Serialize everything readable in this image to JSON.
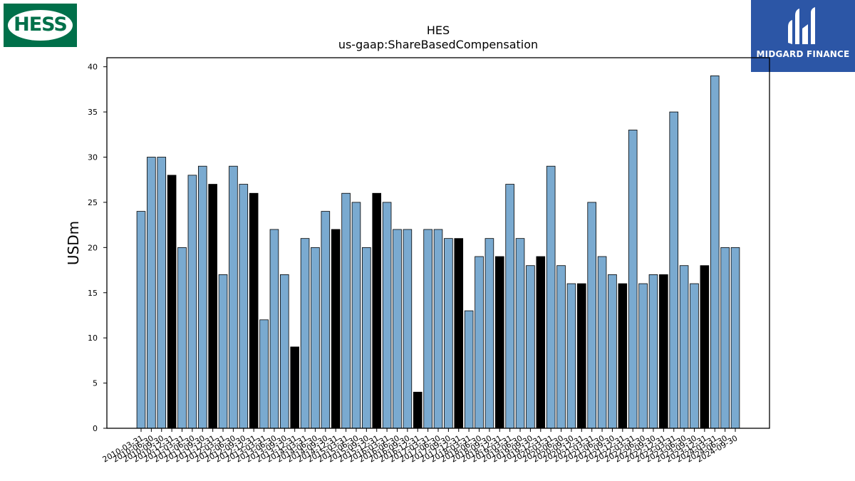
{
  "logos": {
    "left": "HESS",
    "right": "MIDGARD FINANCE"
  },
  "colors": {
    "bar": "#7aaad0",
    "bar_highlight": "#000000",
    "hess_green": "#00704a",
    "midgard_blue": "#2c56a6"
  },
  "chart_data": {
    "type": "bar",
    "title": "HES",
    "subtitle": "us-gaap:ShareBasedCompensation",
    "ylabel": "USDm",
    "ylim": [
      0,
      41
    ],
    "yticks": [
      0,
      5,
      10,
      15,
      20,
      25,
      30,
      35,
      40
    ],
    "grid": false,
    "categories": [
      "2010-03-31",
      "2010-06-30",
      "2010-09-30",
      "2010-12-31",
      "2011-03-31",
      "2011-06-30",
      "2011-09-30",
      "2011-12-31",
      "2012-03-31",
      "2012-06-30",
      "2012-09-30",
      "2012-12-31",
      "2013-03-31",
      "2013-06-30",
      "2013-09-30",
      "2013-12-31",
      "2014-03-31",
      "2014-06-30",
      "2014-09-30",
      "2014-12-31",
      "2015-03-31",
      "2015-06-30",
      "2015-09-30",
      "2015-12-31",
      "2016-03-31",
      "2016-06-30",
      "2016-09-30",
      "2016-12-31",
      "2017-03-31",
      "2017-06-30",
      "2017-09-30",
      "2017-12-31",
      "2018-03-31",
      "2018-06-30",
      "2018-09-30",
      "2018-12-31",
      "2019-03-31",
      "2019-06-30",
      "2019-09-30",
      "2019-12-31",
      "2020-03-31",
      "2020-06-30",
      "2020-09-30",
      "2020-12-31",
      "2021-03-31",
      "2021-06-30",
      "2021-09-30",
      "2021-12-31",
      "2022-03-31",
      "2022-06-30",
      "2022-09-30",
      "2022-12-31",
      "2023-03-31",
      "2023-06-30",
      "2023-09-30",
      "2023-12-31",
      "2024-03-31",
      "2024-06-30",
      "2024-09-30"
    ],
    "values": [
      24,
      30,
      30,
      28,
      20,
      28,
      29,
      27,
      17,
      29,
      27,
      26,
      12,
      22,
      17,
      9,
      21,
      20,
      24,
      22,
      26,
      25,
      20,
      26,
      25,
      22,
      22,
      4,
      22,
      22,
      21,
      21,
      13,
      19,
      21,
      19,
      27,
      21,
      18,
      19,
      29,
      18,
      16,
      16,
      25,
      19,
      17,
      16,
      33,
      16,
      17,
      17,
      35,
      18,
      16,
      18,
      39,
      20,
      20
    ]
  }
}
